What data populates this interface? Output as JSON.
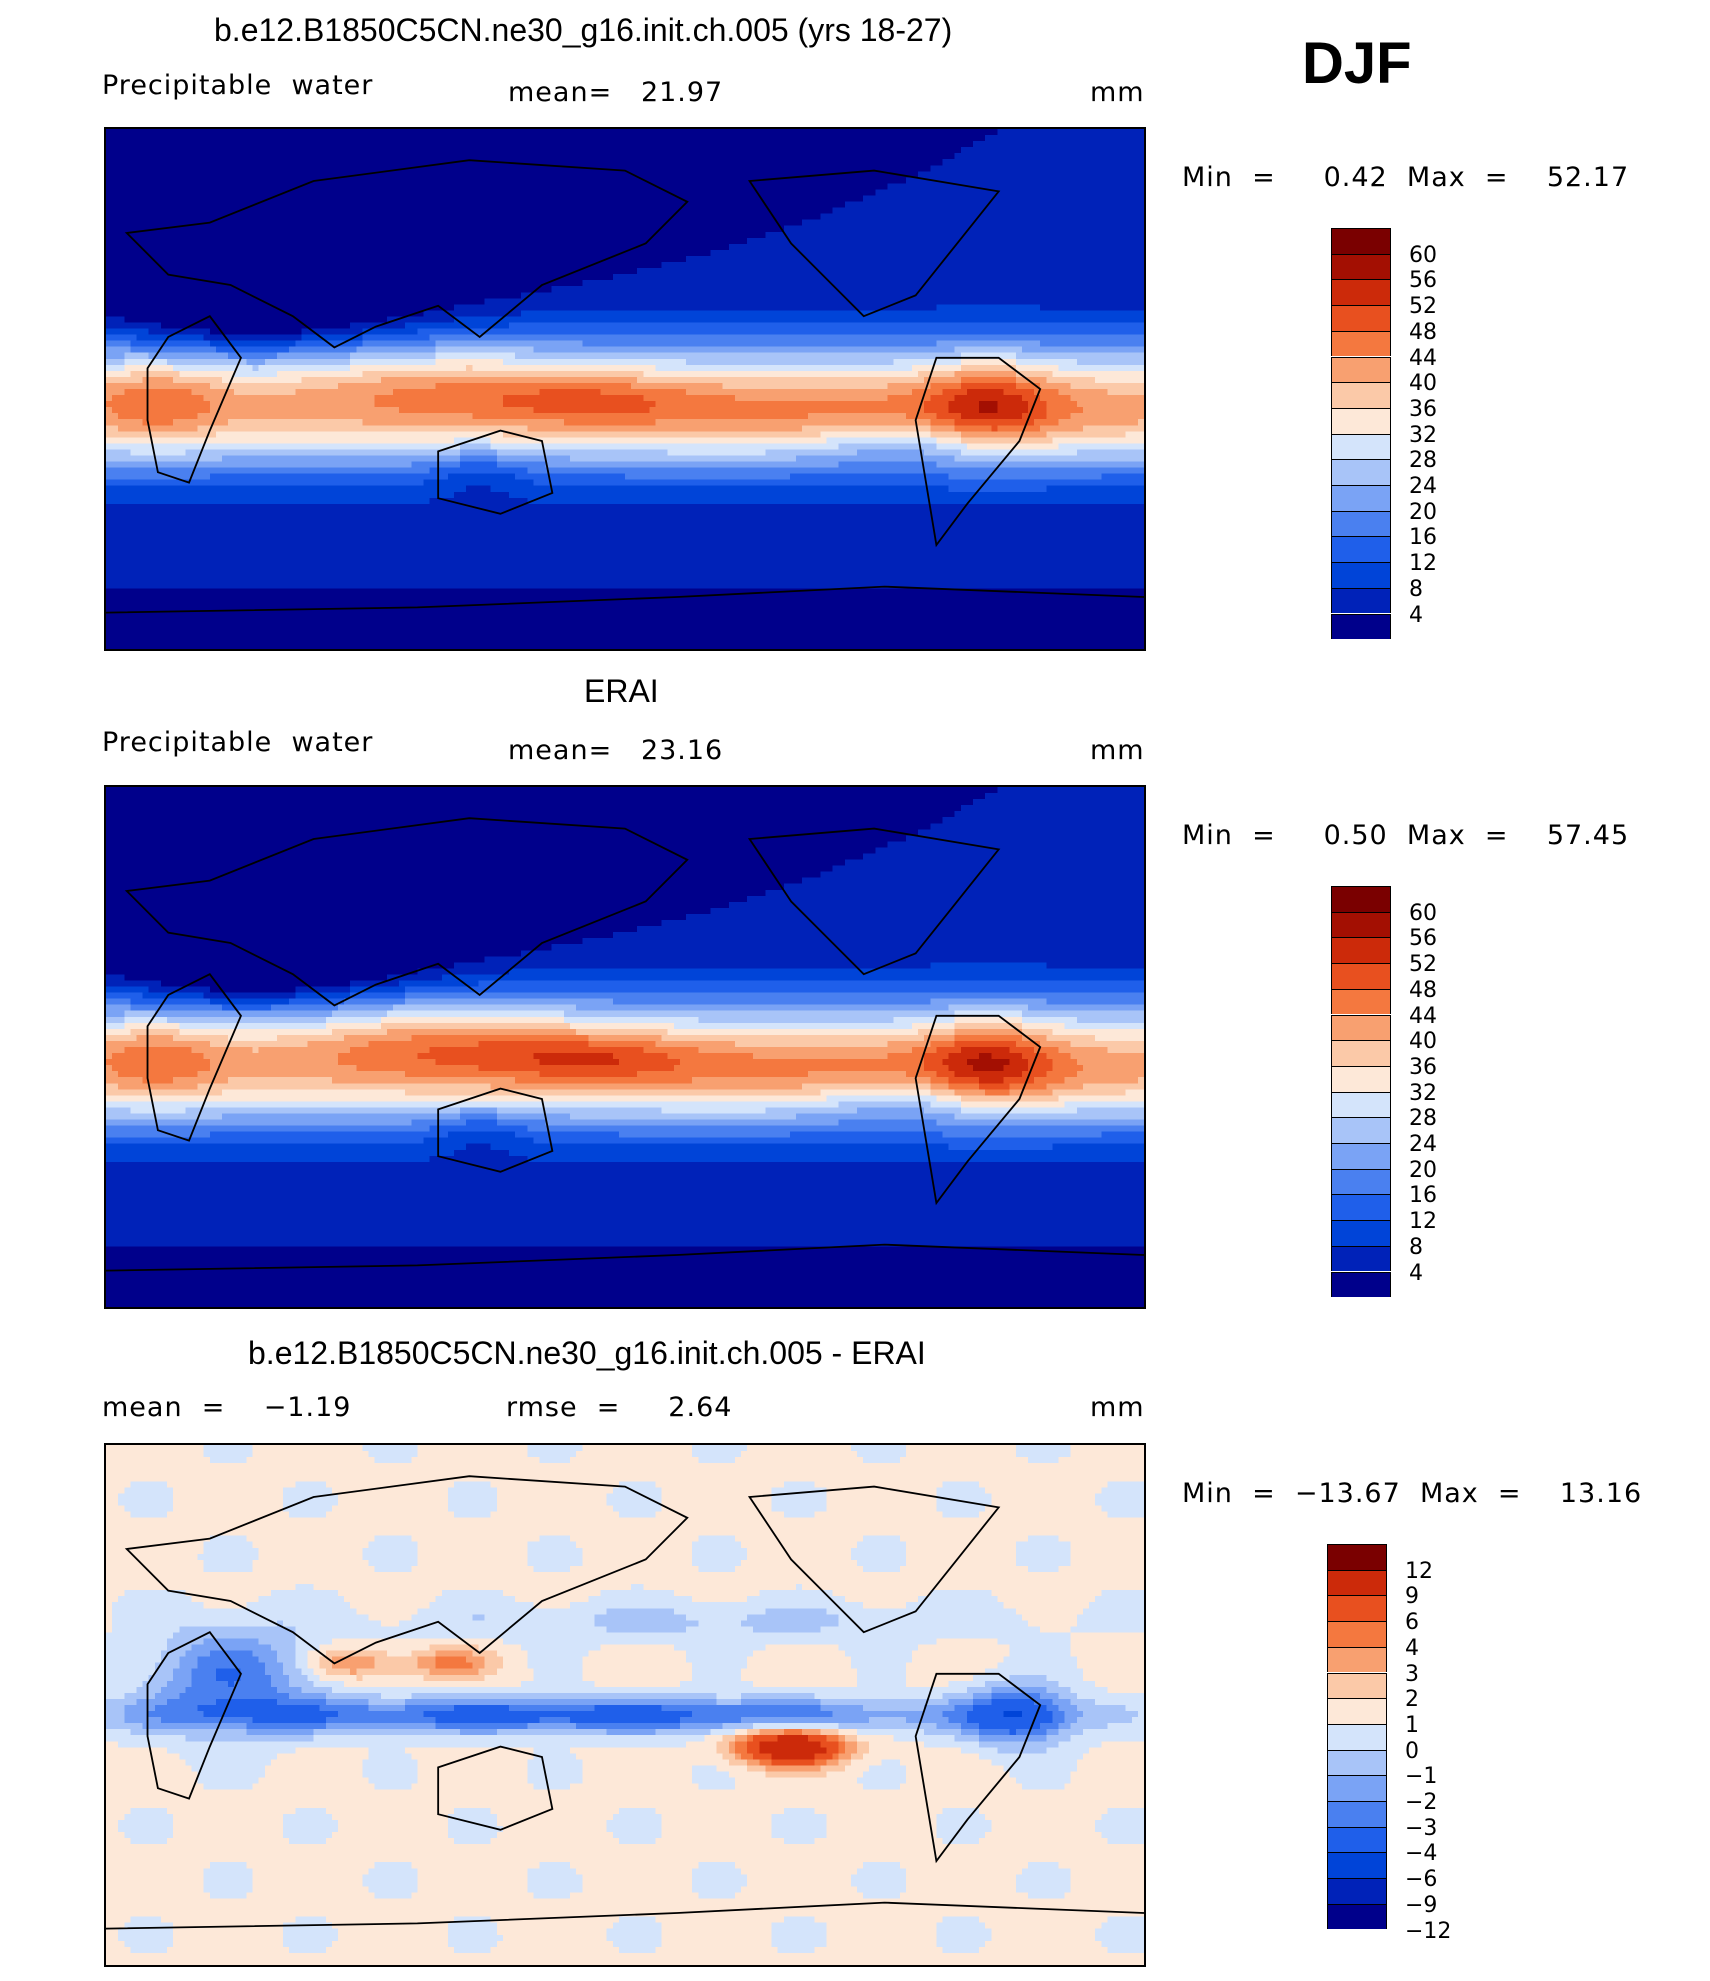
{
  "season": "DJF",
  "colors": {
    "full_field": [
      "#00008b",
      "#0022b8",
      "#0044d8",
      "#1f5fea",
      "#4a80f0",
      "#7aa3f5",
      "#a8c4f8",
      "#d4e4fb",
      "#fde8d8",
      "#fbc9a8",
      "#f8a070",
      "#f4783f",
      "#e8501f",
      "#cc2a0a",
      "#a30f02",
      "#7a0000"
    ],
    "difference": [
      "#00008b",
      "#0022b8",
      "#0044d8",
      "#1f5fea",
      "#4a80f0",
      "#7aa3f5",
      "#a8c4f8",
      "#d4e4fb",
      "#fde8d8",
      "#fbc9a8",
      "#f8a070",
      "#f4783f",
      "#e8501f",
      "#cc2a0a",
      "#7a0000"
    ],
    "coastline": "#000000"
  },
  "panels": [
    {
      "title": "b.e12.B1850C5CN.ne30_g16.init.ch.005 (yrs 18-27)",
      "left_label": "Precipitable  water",
      "center_label": "mean=   21.97",
      "right_label": "mm",
      "minmax": "Min  =     0.42  Max  =    52.17",
      "field": "model",
      "colorbar_labels": [
        "60",
        "56",
        "52",
        "48",
        "44",
        "40",
        "36",
        "32",
        "28",
        "24",
        "20",
        "16",
        "12",
        "8",
        "4"
      ]
    },
    {
      "title": "ERAI",
      "left_label": "Precipitable  water",
      "center_label": "mean=   23.16",
      "right_label": "mm",
      "minmax": "Min  =     0.50  Max  =    57.45",
      "field": "obs",
      "colorbar_labels": [
        "60",
        "56",
        "52",
        "48",
        "44",
        "40",
        "36",
        "32",
        "28",
        "24",
        "20",
        "16",
        "12",
        "8",
        "4"
      ]
    },
    {
      "title": "b.e12.B1850C5CN.ne30_g16.init.ch.005 - ERAI",
      "left_label": "mean  =    −1.19",
      "center_label": "rmse  =     2.64",
      "right_label": "mm",
      "minmax": "Min  =  −13.67  Max  =    13.16",
      "field": "diff",
      "colorbar_labels": [
        "12",
        "9",
        "6",
        "4",
        "3",
        "2",
        "1",
        "0",
        "−1",
        "−2",
        "−3",
        "−4",
        "−6",
        "−9",
        "−12"
      ]
    }
  ]
}
